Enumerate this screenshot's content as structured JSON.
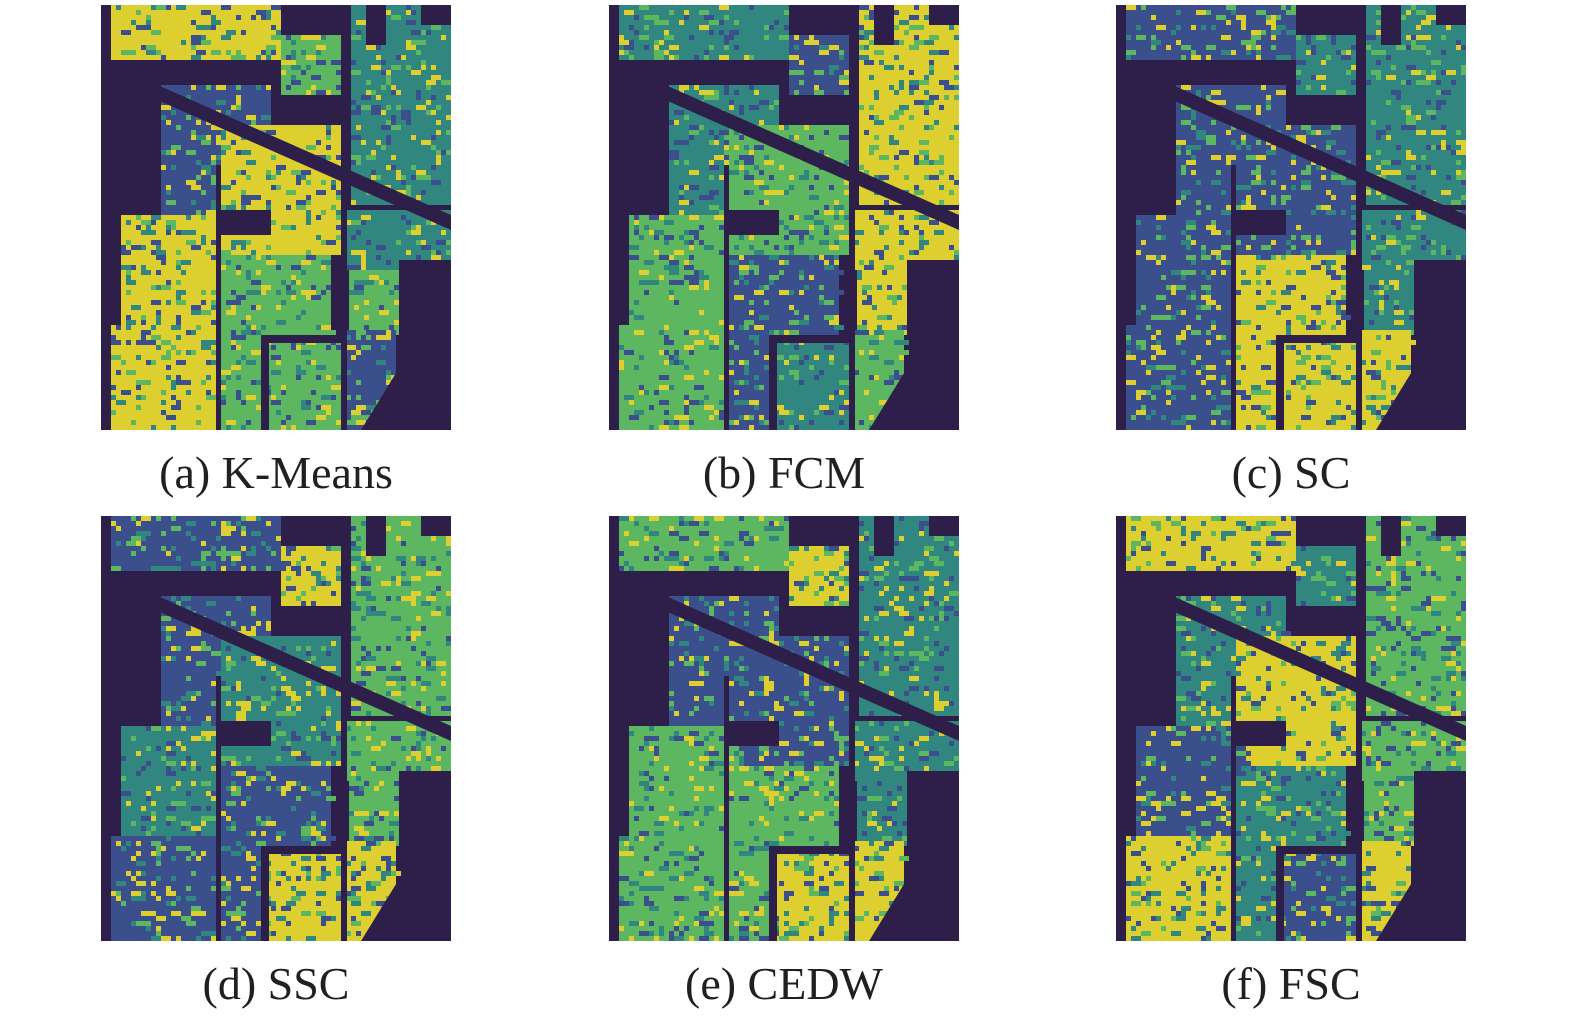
{
  "colors": {
    "dark": "#2e1e4a",
    "blue": "#3a4f8c",
    "teal": "#31877f",
    "green": "#5db760",
    "yellow": "#dccf2f"
  },
  "panels": [
    {
      "caption": "(a) K-Means",
      "class_colors": [
        "yellow",
        "green",
        "teal",
        "blue",
        "yellow",
        "yellow",
        "green",
        "yellow",
        "teal",
        "green",
        "green",
        "blue"
      ]
    },
    {
      "caption": "(b) FCM",
      "class_colors": [
        "teal",
        "blue",
        "yellow",
        "teal",
        "green",
        "green",
        "blue",
        "green",
        "yellow",
        "yellow",
        "teal",
        "green"
      ]
    },
    {
      "caption": "(c) SC",
      "class_colors": [
        "blue",
        "teal",
        "teal",
        "blue",
        "blue",
        "blue",
        "yellow",
        "blue",
        "teal",
        "teal",
        "yellow",
        "yellow"
      ]
    },
    {
      "caption": "(d) SSC",
      "class_colors": [
        "blue",
        "yellow",
        "green",
        "blue",
        "teal",
        "teal",
        "blue",
        "blue",
        "green",
        "green",
        "yellow",
        "yellow"
      ]
    },
    {
      "caption": "(e) CEDW",
      "class_colors": [
        "green",
        "yellow",
        "teal",
        "blue",
        "blue",
        "green",
        "green",
        "green",
        "teal",
        "teal",
        "yellow",
        "yellow"
      ]
    },
    {
      "caption": "(f) FSC",
      "class_colors": [
        "yellow",
        "teal",
        "green",
        "teal",
        "yellow",
        "blue",
        "teal",
        "yellow",
        "green",
        "green",
        "blue",
        "yellow"
      ]
    }
  ]
}
